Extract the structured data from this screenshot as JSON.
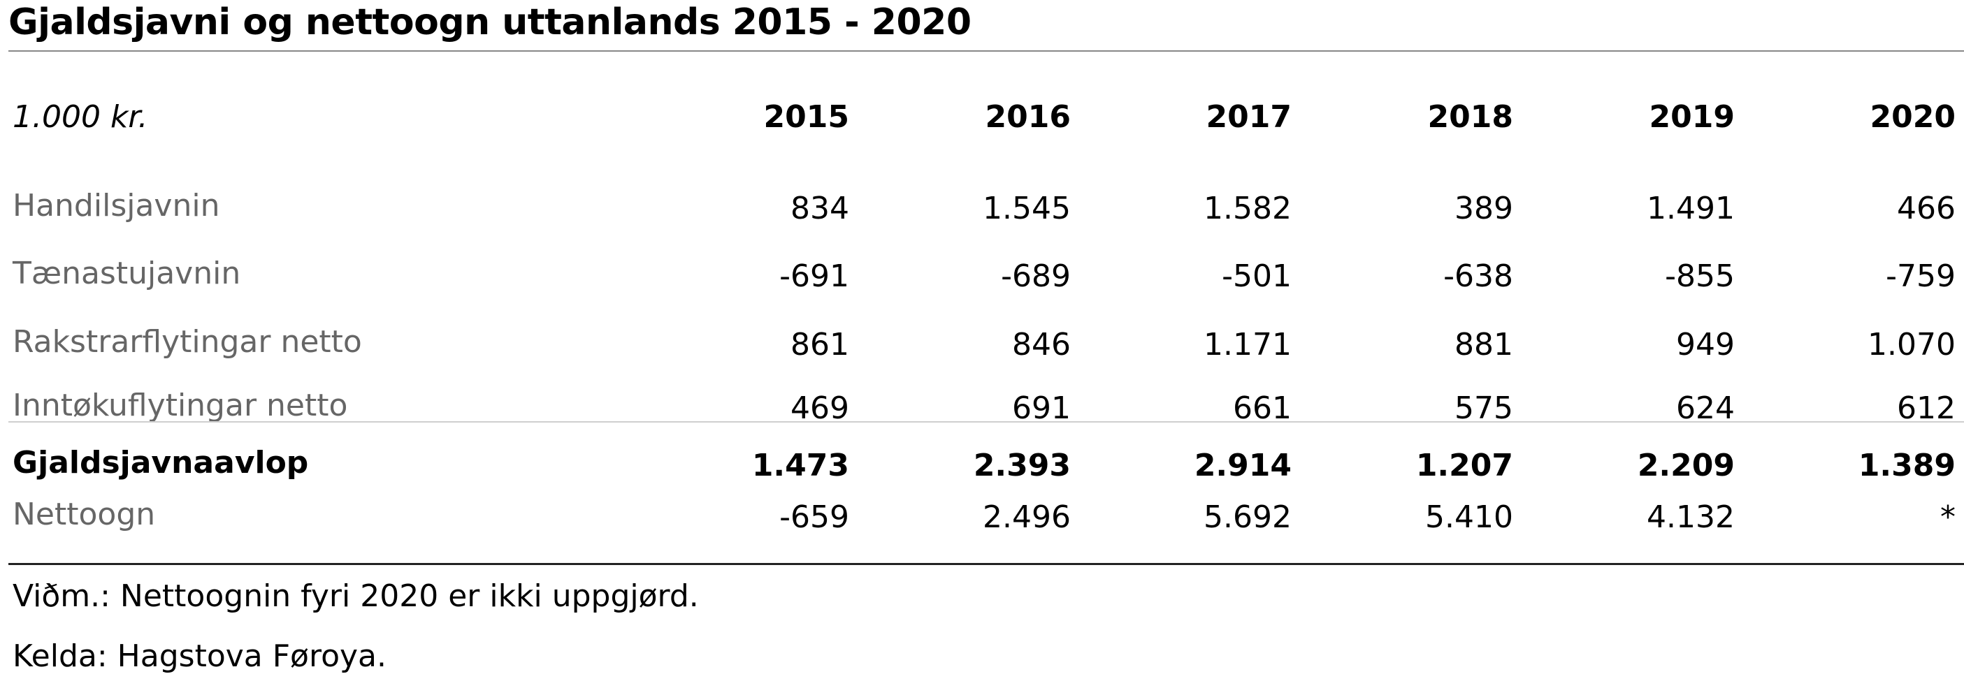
{
  "chart_data": {
    "type": "table",
    "title": "Gjaldsjavni og nettoogn uttanlands 2015 - 2020",
    "unit_label": "1.000 kr.",
    "columns": [
      "2015",
      "2016",
      "2017",
      "2018",
      "2019",
      "2020"
    ],
    "rows": [
      {
        "label": "Handilsjavnin",
        "values": [
          "834",
          "1.545",
          "1.582",
          "389",
          "1.491",
          "466"
        ]
      },
      {
        "label": "Tænastujavnin",
        "values": [
          "-691",
          "-689",
          "-501",
          "-638",
          "-855",
          "-759"
        ]
      },
      {
        "label": "Rakstrarflytingar netto",
        "values": [
          "861",
          "846",
          "1.171",
          "881",
          "949",
          "1.070"
        ]
      },
      {
        "label": "Inntøkuflytingar netto",
        "values": [
          "469",
          "691",
          "661",
          "575",
          "624",
          "612"
        ]
      },
      {
        "label": "Gjaldsjavnaavlop",
        "values": [
          "1.473",
          "2.393",
          "2.914",
          "1.207",
          "2.209",
          "1.389"
        ],
        "bold": true
      },
      {
        "label": "Nettoogn",
        "values": [
          "-659",
          "2.496",
          "5.692",
          "5.410",
          "4.132",
          "*"
        ]
      }
    ],
    "notes": [
      "Viðm.: Nettoognin fyri 2020 er ikki uppgjørd.",
      "Kelda: Hagstova Føroya."
    ]
  }
}
